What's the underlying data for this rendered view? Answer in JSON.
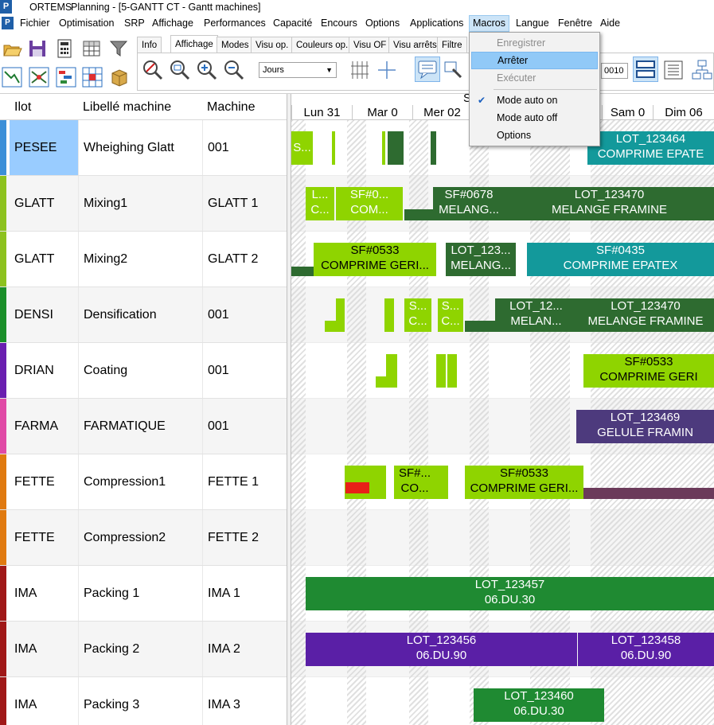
{
  "titlebar": {
    "app_name": "ORTEMS",
    "document": "Planning - [5-GANTT CT - Gantt machines]",
    "logo": "P"
  },
  "menubar": {
    "logo": "P",
    "items": [
      "Fichier",
      "Optimisation",
      "SRP",
      "Affichage",
      "Performances",
      "Capacité",
      "Encours",
      "Options",
      "Applications",
      "Macros",
      "Langue",
      "Fenêtre",
      "Aide"
    ],
    "active": "Macros"
  },
  "ribbon": {
    "tabs": [
      "Info",
      "Affichage",
      "Modes",
      "Visu op.",
      "Couleurs op.",
      "Visu OF",
      "Visu arrêts",
      "Filtre"
    ],
    "selected_tab": "Affichage",
    "period_select": {
      "value": "Jours"
    },
    "counter_value": "0010",
    "icons": [
      "open-folder-icon",
      "save-icon",
      "calculator-icon",
      "filter-icon",
      "link-icon",
      "network-icon",
      "gantt-icon",
      "grid-icon",
      "package-icon",
      "zoom-reset-icon",
      "zoom-fit-icon",
      "zoom-in-icon",
      "zoom-out-icon",
      "grid-lines-icon",
      "crosshair-icon",
      "comment-icon",
      "tools-icon",
      "layout-icon",
      "list-icon",
      "flow-icon"
    ]
  },
  "macros_menu": {
    "items": [
      {
        "label": "Enregistrer",
        "enabled": false
      },
      {
        "label": "Arrêter",
        "enabled": true,
        "highlighted": true
      },
      {
        "label": "Exécuter",
        "enabled": false
      },
      {
        "label": "Mode auto on",
        "checked": true
      },
      {
        "label": "Mode auto off"
      },
      {
        "label": "Options"
      }
    ]
  },
  "grid": {
    "headers": [
      "Ilot",
      "Libellé machine",
      "Machine"
    ],
    "rows": [
      {
        "ilot": "PESEE",
        "libelle": "Wheighing Glatt",
        "machine": "001",
        "color": "#3c8fd8"
      },
      {
        "ilot": "GLATT",
        "libelle": "Mixing1",
        "machine": "GLATT 1",
        "color": "#8dc21f"
      },
      {
        "ilot": "GLATT",
        "libelle": "Mixing2",
        "machine": "GLATT 2",
        "color": "#8dc21f"
      },
      {
        "ilot": "DENSI",
        "libelle": "Densification",
        "machine": "001",
        "color": "#1a8f2a"
      },
      {
        "ilot": "DRIAN",
        "libelle": "Coating",
        "machine": "001",
        "color": "#6a1fb0"
      },
      {
        "ilot": "FARMA",
        "libelle": "FARMATIQUE",
        "machine": "001",
        "color": "#e04aa6"
      },
      {
        "ilot": "FETTE",
        "libelle": "Compression1",
        "machine": "FETTE 1",
        "color": "#e07a10"
      },
      {
        "ilot": "FETTE",
        "libelle": "Compression2",
        "machine": "FETTE 2",
        "color": "#e07a10"
      },
      {
        "ilot": "IMA",
        "libelle": "Packing 1",
        "machine": "IMA 1",
        "color": "#a01818"
      },
      {
        "ilot": "IMA",
        "libelle": "Packing 2",
        "machine": "IMA 2",
        "color": "#a01818"
      },
      {
        "ilot": "IMA",
        "libelle": "Packing 3",
        "machine": "IMA 3",
        "color": "#a01818"
      }
    ]
  },
  "timeline": {
    "week_label": "S",
    "days": [
      "Lun 31",
      "Mar 0",
      "Mer 02",
      "",
      "",
      "Sam 0",
      "Dim 06"
    ]
  },
  "bars": {
    "r0_a": "S...",
    "r0_b1": "LOT_123464",
    "r0_b2": "COMPRIME EPATE",
    "r1_a1": "L...",
    "r1_a2": "C...",
    "r1_b1": "SF#0...",
    "r1_b2": "COM...",
    "r1_c1": "SF#0678",
    "r1_c2": "MELANG...",
    "r1_d1": "LOT_123470",
    "r1_d2": "MELANGE FRAMINE",
    "r2_a1": "SF#0533",
    "r2_a2": "COMPRIME GERI...",
    "r2_b1": "LOT_123...",
    "r2_b2": "MELANG...",
    "r2_c1": "SF#0435",
    "r2_c2": "COMPRIME EPATEX",
    "r3_a1": "S...",
    "r3_a2": "C...",
    "r3_b1": "S...",
    "r3_b2": "C...",
    "r3_c1": "LOT_12...",
    "r3_c2": "MELAN...",
    "r3_d1": "LOT_123470",
    "r3_d2": "MELANGE FRAMINE",
    "r4_a1": "SF#0533",
    "r4_a2": "COMPRIME GERI",
    "r5_a1": "LOT_123469",
    "r5_a2": "GELULE FRAMIN",
    "r6_a1": "SF#...",
    "r6_a2": "CO...",
    "r6_b1": "SF#0533",
    "r6_b2": "COMPRIME GERI...",
    "r8_a1": "LOT_123457",
    "r8_a2": "06.DU.30",
    "r9_a1": "LOT_123456",
    "r9_a2": "06.DU.90",
    "r9_b1": "LOT_123458",
    "r9_b2": "06.DU.90",
    "r10_a1": "LOT_123460",
    "r10_a2": "06.DU.30"
  }
}
